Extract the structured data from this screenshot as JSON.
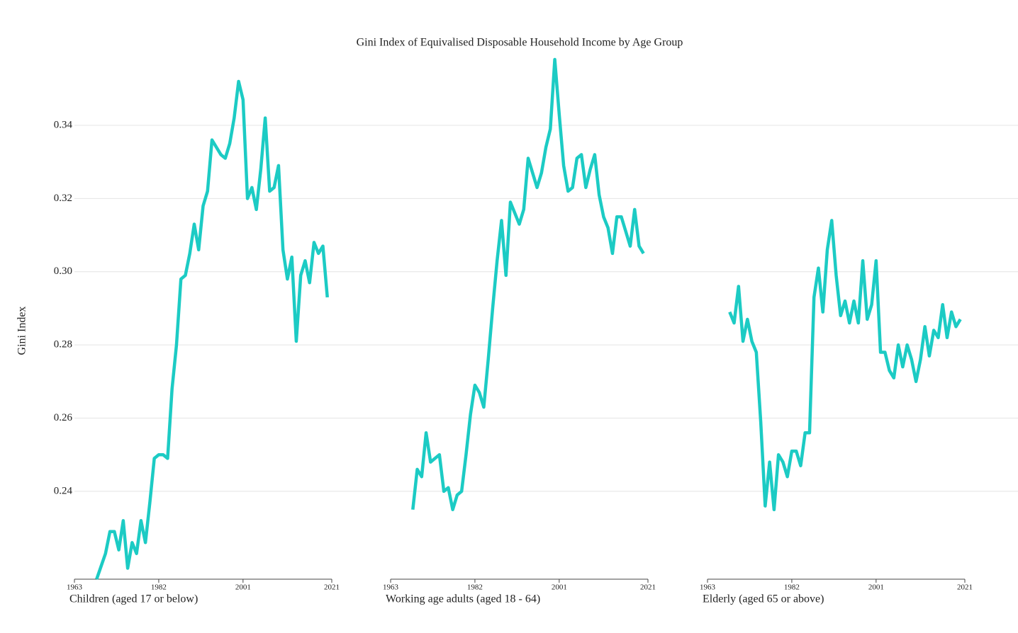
{
  "title": "Gini Index of Equivalised Disposable Household Income by Age Group",
  "y_axis": {
    "label": "Gini Index",
    "ylim": [
      0.216,
      0.36
    ],
    "yticks": [
      0.24,
      0.26,
      0.28,
      {
        "value": 0.3,
        "label": "0.30"
      },
      0.32,
      0.34
    ],
    "grid": true
  },
  "chart_data": [
    {
      "type": "line",
      "subtitle": "Children (aged 17 or below)",
      "color": "#1ccbc4",
      "xlim": [
        1963,
        2021
      ],
      "xticks": [
        1963,
        1982,
        2001,
        2021
      ],
      "x": [
        1968,
        1969,
        1970,
        1971,
        1972,
        1973,
        1974,
        1975,
        1976,
        1977,
        1978,
        1979,
        1980,
        1981,
        1982,
        1983,
        1984,
        1985,
        1986,
        1987,
        1988,
        1989,
        1990,
        1991,
        1992,
        1993,
        1994,
        1995,
        1996,
        1997,
        1998,
        1999,
        2000,
        2001,
        2002,
        2003,
        2004,
        2005,
        2006,
        2007,
        2008,
        2009,
        2010,
        2011,
        2012,
        2013,
        2014,
        2015,
        2016,
        2017,
        2018,
        2019,
        2020
      ],
      "values": [
        0.216,
        0.2195,
        0.223,
        0.229,
        0.229,
        0.224,
        0.232,
        0.219,
        0.226,
        0.223,
        0.232,
        0.226,
        0.237,
        0.249,
        0.25,
        0.25,
        0.249,
        0.268,
        0.28,
        0.298,
        0.299,
        0.305,
        0.313,
        0.306,
        0.318,
        0.322,
        0.336,
        0.334,
        0.332,
        0.331,
        0.335,
        0.342,
        0.352,
        0.347,
        0.32,
        0.323,
        0.317,
        0.328,
        0.342,
        0.322,
        0.323,
        0.329,
        0.306,
        0.298,
        0.304,
        0.281,
        0.299,
        0.303,
        0.297,
        0.308,
        0.305,
        0.307,
        0.293
      ]
    },
    {
      "type": "line",
      "subtitle": "Working age adults (aged 18 - 64)",
      "color": "#1ccbc4",
      "xlim": [
        1963,
        2021
      ],
      "xticks": [
        1963,
        1982,
        2001,
        2021
      ],
      "x": [
        1968,
        1969,
        1970,
        1971,
        1972,
        1973,
        1974,
        1975,
        1976,
        1977,
        1978,
        1979,
        1980,
        1981,
        1982,
        1983,
        1984,
        1985,
        1986,
        1987,
        1988,
        1989,
        1990,
        1991,
        1992,
        1993,
        1994,
        1995,
        1996,
        1997,
        1998,
        1999,
        2000,
        2001,
        2002,
        2003,
        2004,
        2005,
        2006,
        2007,
        2008,
        2009,
        2010,
        2011,
        2012,
        2013,
        2014,
        2015,
        2016,
        2017,
        2018,
        2019,
        2020
      ],
      "values": [
        0.235,
        0.246,
        0.244,
        0.256,
        0.248,
        0.249,
        0.25,
        0.24,
        0.241,
        0.235,
        0.239,
        0.24,
        0.25,
        0.261,
        0.269,
        0.267,
        0.263,
        0.276,
        0.29,
        0.303,
        0.314,
        0.299,
        0.319,
        0.316,
        0.313,
        0.317,
        0.331,
        0.327,
        0.323,
        0.327,
        0.334,
        0.339,
        0.358,
        0.343,
        0.329,
        0.322,
        0.323,
        0.331,
        0.332,
        0.323,
        0.328,
        0.332,
        0.321,
        0.315,
        0.312,
        0.305,
        0.315,
        0.315,
        0.311,
        0.307,
        0.317,
        0.307,
        0.305
      ]
    },
    {
      "type": "line",
      "subtitle": "Elderly (aged 65 or above)",
      "color": "#1ccbc4",
      "xlim": [
        1963,
        2021
      ],
      "xticks": [
        1963,
        1982,
        2001,
        2021
      ],
      "x": [
        1968,
        1969,
        1970,
        1971,
        1972,
        1973,
        1974,
        1975,
        1976,
        1977,
        1978,
        1979,
        1980,
        1981,
        1982,
        1983,
        1984,
        1985,
        1986,
        1987,
        1988,
        1989,
        1990,
        1991,
        1992,
        1993,
        1994,
        1995,
        1996,
        1997,
        1998,
        1999,
        2000,
        2001,
        2002,
        2003,
        2004,
        2005,
        2006,
        2007,
        2008,
        2009,
        2010,
        2011,
        2012,
        2013,
        2014,
        2015,
        2016,
        2017,
        2018,
        2019,
        2020
      ],
      "values": [
        0.289,
        0.286,
        0.296,
        0.281,
        0.287,
        0.281,
        0.278,
        0.259,
        0.236,
        0.248,
        0.235,
        0.25,
        0.248,
        0.244,
        0.251,
        0.251,
        0.247,
        0.256,
        0.256,
        0.293,
        0.301,
        0.289,
        0.306,
        0.314,
        0.299,
        0.288,
        0.292,
        0.286,
        0.292,
        0.286,
        0.303,
        0.287,
        0.291,
        0.303,
        0.278,
        0.278,
        0.273,
        0.271,
        0.28,
        0.274,
        0.28,
        0.276,
        0.27,
        0.276,
        0.285,
        0.277,
        0.284,
        0.282,
        0.291,
        0.282,
        0.289,
        0.285,
        0.287
      ]
    }
  ]
}
